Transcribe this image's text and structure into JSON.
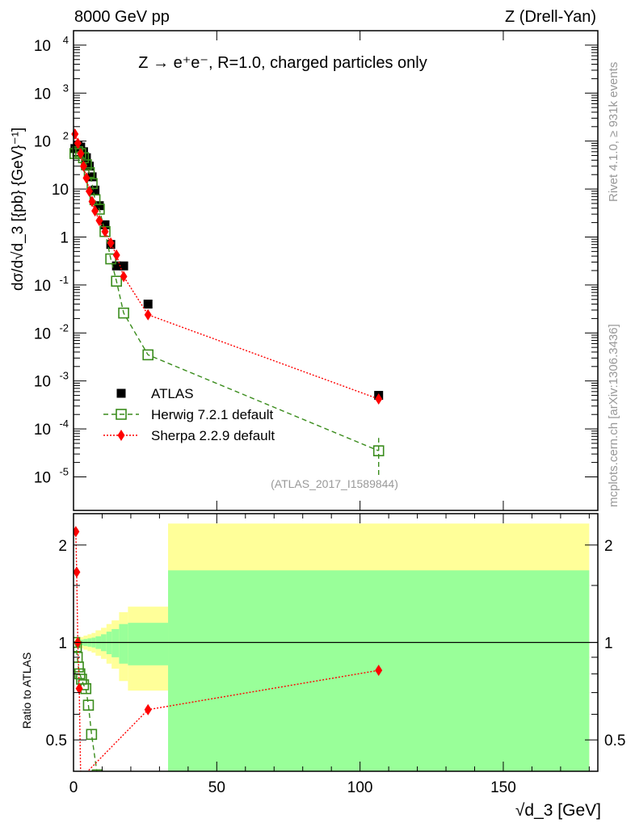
{
  "header": {
    "left": "8000 GeV pp",
    "right": "Z (Drell-Yan)"
  },
  "side": {
    "rivet": "Rivet 4.1.0, ≥ 931k events",
    "mcplots": "mcplots.cern.ch [arXiv:1306.3436]"
  },
  "chart_data": [
    {
      "type": "scatter",
      "title": "Z → e⁺e⁻, R=1.0, charged particles only",
      "ylabel": "dσ/d√d_3 [{pb} {GeV}⁻¹]",
      "xlabel": "√d_3 [GeV]",
      "analysis": "(ATLAS_2017_I1589844)",
      "yscale": "log",
      "xlim": [
        0,
        183
      ],
      "ylim": [
        2e-06,
        20000
      ],
      "yticks": [
        {
          "value": 1e-05,
          "base": "10",
          "exp": "-5"
        },
        {
          "value": 0.0001,
          "base": "10",
          "exp": "-4"
        },
        {
          "value": 0.001,
          "base": "10",
          "exp": "-3"
        },
        {
          "value": 0.01,
          "base": "10",
          "exp": "-2"
        },
        {
          "value": 0.1,
          "base": "10",
          "exp": "-1"
        },
        {
          "value": 1,
          "base": "1",
          "exp": ""
        },
        {
          "value": 10,
          "base": "10",
          "exp": ""
        },
        {
          "value": 100,
          "base": "10",
          "exp": "2"
        },
        {
          "value": 1000,
          "base": "10",
          "exp": "3"
        },
        {
          "value": 10000,
          "base": "10",
          "exp": "4"
        }
      ],
      "legend_position": "bottom-left",
      "x": [
        0.5,
        1.5,
        2.5,
        3.5,
        4.5,
        5.5,
        6.5,
        7.5,
        9,
        11,
        13,
        15,
        17.5,
        26,
        106.5
      ],
      "series": [
        {
          "name": "ATLAS",
          "color": "#000000",
          "marker": "square",
          "values": [
            70,
            80,
            75,
            60,
            45,
            30,
            18,
            9.5,
            4.5,
            1.8,
            0.7,
            0.25,
            0.25,
            0.04,
            0.0005
          ]
        },
        {
          "name": "Herwig 7.2.1 default",
          "color": "#3a8c1c",
          "marker": "open-square",
          "line": "dashed",
          "values": [
            55,
            60,
            55,
            45,
            32,
            22,
            13,
            6,
            3.8,
            1.3,
            0.35,
            0.12,
            0.026,
            0.0035,
            3.5e-05
          ],
          "last_error": [
            1.1e-05,
            6.5e-05
          ]
        },
        {
          "name": "Sherpa 2.2.9 default",
          "color": "#ff0000",
          "marker": "diamond",
          "line": "dotted",
          "values": [
            140,
            90,
            55,
            30,
            17,
            9,
            5.5,
            3.5,
            2.2,
            1.3,
            0.75,
            0.42,
            0.15,
            0.024,
            0.00042
          ]
        }
      ]
    },
    {
      "type": "line",
      "ylabel": "Ratio to ATLAS",
      "yscale": "log",
      "xlim": [
        0,
        183
      ],
      "ylim": [
        0.4,
        2.5
      ],
      "xticks": [
        {
          "value": 0,
          "label": "0"
        },
        {
          "value": 50,
          "label": "50"
        },
        {
          "value": 100,
          "label": "100"
        },
        {
          "value": 150,
          "label": "150"
        }
      ],
      "yticks": [
        {
          "value": 0.5,
          "label": "0.5"
        },
        {
          "value": 1,
          "label": "1"
        },
        {
          "value": 2,
          "label": "2"
        }
      ],
      "bands": {
        "edges": [
          0,
          0.6,
          2.0,
          3.5,
          4.9,
          6.3,
          7.7,
          9.6,
          11.5,
          13.3,
          15.9,
          19.0,
          33.0,
          180
        ],
        "total_halfwidth": [
          0.01,
          0.03,
          0.04,
          0.05,
          0.06,
          0.07,
          0.09,
          0.11,
          0.14,
          0.17,
          0.24,
          0.29,
          1.33
        ],
        "stat_halfwidth": [
          0.005,
          0.015,
          0.02,
          0.025,
          0.03,
          0.035,
          0.045,
          0.06,
          0.08,
          0.1,
          0.14,
          0.15,
          0.67
        ],
        "total_color": "#ffff99",
        "stat_color": "#99ff99"
      },
      "series": [
        {
          "name": "Herwig 7.2.1 default",
          "color": "#3a8c1c",
          "x": [
            0.4,
            1.0,
            1.3,
            1.7,
            2.2,
            2.8,
            3.5,
            4.3,
            5.2,
            6.3,
            8.3
          ],
          "values": [
            1.0,
            0.97,
            0.9,
            0.84,
            0.8,
            0.77,
            0.74,
            0.72,
            0.64,
            0.52,
            0.39
          ]
        },
        {
          "name": "Sherpa 2.2.9 default",
          "color": "#ff0000",
          "x": [
            0.8,
            1.1,
            1.5,
            2.0,
            2.5,
            26,
            106.5
          ],
          "values": [
            2.2,
            1.65,
            1.0,
            0.72,
            0.38,
            0.62,
            0.82
          ]
        }
      ]
    }
  ]
}
